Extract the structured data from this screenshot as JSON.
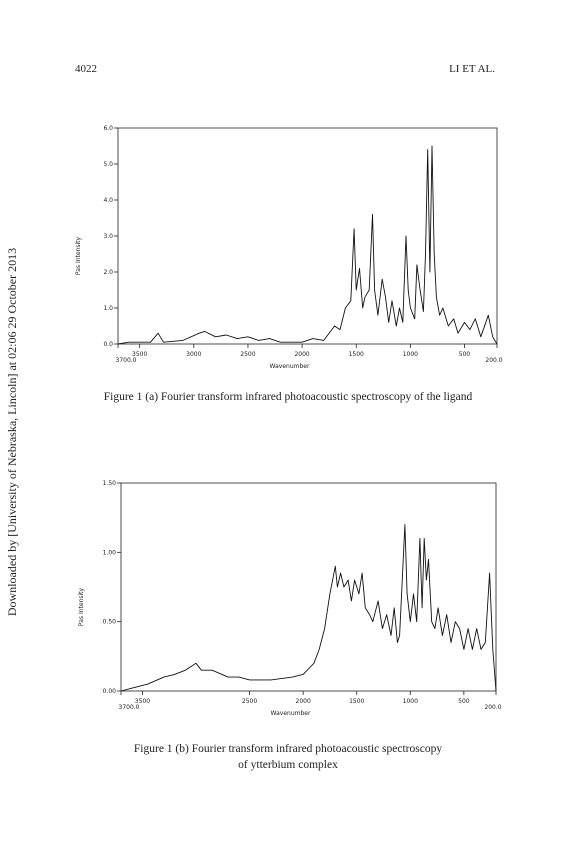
{
  "header": {
    "page": "4022",
    "running_head": "LI ET AL."
  },
  "watermark": "Downloaded by [University of Nebraska, Lincoln] at 02:06 29 October 2013",
  "chart_data": [
    {
      "type": "line",
      "ylabel": "Pas   Intensity",
      "xlabel": "Wavenumber",
      "caption": [
        "Figure 1 (a) Fourier transform infrared photoacoustic spectroscopy of the ligand"
      ],
      "xlim": [
        3700,
        200
      ],
      "ylim": [
        0,
        6
      ],
      "xticks": [
        {
          "value": 3700,
          "label": "3700.0"
        },
        3500,
        3000,
        2500,
        2000,
        1500,
        1000,
        500,
        {
          "value": 200,
          "label": "200.0"
        }
      ],
      "yticks": [
        {
          "value": 0,
          "label": "0.0"
        },
        {
          "value": 1,
          "label": "1.0"
        },
        {
          "value": 2,
          "label": "2.0"
        },
        {
          "value": 3,
          "label": "3.0"
        },
        {
          "value": 4,
          "label": "4.0"
        },
        {
          "value": 5,
          "label": "5.0"
        },
        {
          "value": 6,
          "label": "6.0"
        }
      ],
      "color": "#111111",
      "x": [
        3700,
        3600,
        3400,
        3330,
        3280,
        3100,
        2950,
        2900,
        2800,
        2700,
        2600,
        2500,
        2400,
        2300,
        2200,
        2000,
        1900,
        1800,
        1700,
        1650,
        1600,
        1550,
        1520,
        1500,
        1470,
        1440,
        1420,
        1380,
        1350,
        1330,
        1300,
        1260,
        1230,
        1200,
        1170,
        1130,
        1100,
        1070,
        1040,
        1020,
        1000,
        960,
        940,
        910,
        880,
        860,
        840,
        820,
        800,
        780,
        760,
        730,
        700,
        650,
        600,
        560,
        500,
        450,
        400,
        350,
        280,
        240,
        200
      ],
      "values": [
        0.0,
        0.05,
        0.05,
        0.3,
        0.05,
        0.1,
        0.3,
        0.35,
        0.2,
        0.25,
        0.15,
        0.2,
        0.1,
        0.15,
        0.05,
        0.05,
        0.15,
        0.1,
        0.5,
        0.4,
        1.0,
        1.2,
        3.2,
        1.5,
        2.1,
        1.0,
        1.3,
        1.5,
        3.6,
        1.5,
        0.8,
        1.8,
        1.3,
        0.6,
        1.2,
        0.5,
        1.0,
        0.6,
        3.0,
        1.5,
        1.0,
        0.7,
        2.2,
        1.5,
        0.9,
        2.5,
        5.4,
        2.0,
        5.5,
        2.5,
        1.3,
        0.8,
        1.0,
        0.5,
        0.7,
        0.3,
        0.6,
        0.4,
        0.7,
        0.2,
        0.8,
        0.2,
        0.0
      ]
    },
    {
      "type": "line",
      "ylabel": "Pas   Intensity",
      "xlabel": "Wavenumber",
      "caption": [
        "Figure 1 (b) Fourier transform infrared photoacoustic spectroscopy",
        "of ytterbium complex"
      ],
      "xlim": [
        3700,
        200
      ],
      "ylim": [
        0,
        1.5
      ],
      "xticks": [
        {
          "value": 3700,
          "label": "3700.0"
        },
        3500,
        2500,
        2000,
        1500,
        1000,
        500,
        {
          "value": 200,
          "label": "200.0"
        }
      ],
      "yticks": [
        {
          "value": 0,
          "label": "0.00"
        },
        {
          "value": 0.5,
          "label": "0.50"
        },
        {
          "value": 1,
          "label": "1.00"
        },
        {
          "value": 1.5,
          "label": "1.50"
        }
      ],
      "color": "#111111",
      "x": [
        3700,
        3600,
        3450,
        3300,
        3200,
        3100,
        3000,
        2950,
        2850,
        2700,
        2600,
        2500,
        2300,
        2100,
        2000,
        1900,
        1850,
        1800,
        1750,
        1700,
        1680,
        1650,
        1620,
        1580,
        1550,
        1520,
        1480,
        1450,
        1420,
        1380,
        1350,
        1300,
        1260,
        1220,
        1180,
        1150,
        1120,
        1100,
        1050,
        1030,
        1000,
        970,
        940,
        910,
        890,
        870,
        850,
        830,
        800,
        770,
        740,
        700,
        660,
        620,
        580,
        540,
        500,
        460,
        420,
        380,
        340,
        300,
        260,
        230,
        200
      ],
      "values": [
        0.0,
        0.02,
        0.05,
        0.1,
        0.12,
        0.15,
        0.2,
        0.15,
        0.15,
        0.1,
        0.1,
        0.08,
        0.08,
        0.1,
        0.12,
        0.2,
        0.3,
        0.45,
        0.7,
        0.9,
        0.75,
        0.85,
        0.75,
        0.8,
        0.65,
        0.8,
        0.7,
        0.85,
        0.6,
        0.55,
        0.5,
        0.65,
        0.45,
        0.55,
        0.4,
        0.6,
        0.35,
        0.4,
        1.2,
        0.7,
        0.5,
        0.7,
        0.5,
        1.1,
        0.6,
        1.1,
        0.8,
        0.95,
        0.5,
        0.45,
        0.6,
        0.4,
        0.55,
        0.35,
        0.5,
        0.45,
        0.3,
        0.45,
        0.3,
        0.45,
        0.3,
        0.35,
        0.85,
        0.3,
        0.0
      ]
    }
  ]
}
